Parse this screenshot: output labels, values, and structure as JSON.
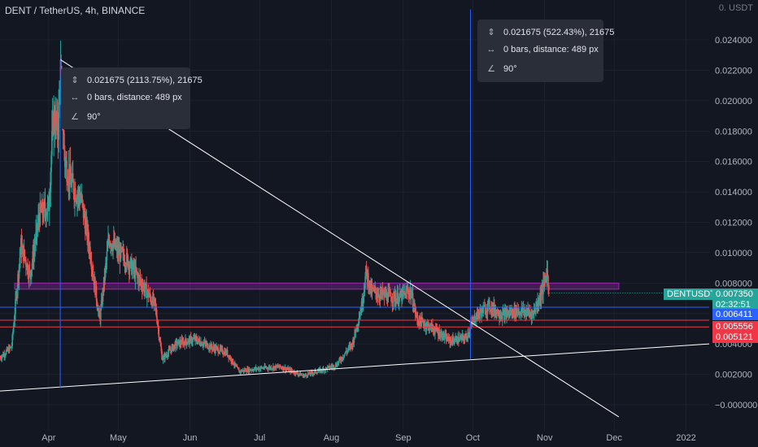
{
  "title": "DENT / TetherUS, 4h, BINANCE",
  "currency_label": "0. USDT",
  "chart_data": {
    "type": "candlestick",
    "symbol": "DENTUSDT",
    "ylim": [
      -0.001,
      0.025
    ],
    "y_ticks": [
      "0.024000",
      "0.022000",
      "0.020000",
      "0.018000",
      "0.016000",
      "0.014000",
      "0.012000",
      "0.010000",
      "0.008000",
      "0.006000",
      "0.004000",
      "0.002000",
      "−0.000000"
    ],
    "y_tick_values": [
      0.024,
      0.022,
      0.02,
      0.018,
      0.016,
      0.014,
      0.012,
      0.01,
      0.008,
      0.006,
      0.004,
      0.002,
      0.0
    ],
    "x_ticks": [
      "Apr",
      "May",
      "Jun",
      "Jul",
      "Aug",
      "Sep",
      "Oct",
      "Nov",
      "Dec",
      "2022"
    ],
    "x_tick_dates": [
      "2021-04-01",
      "2021-05-01",
      "2021-06-01",
      "2021-07-01",
      "2021-08-01",
      "2021-09-01",
      "2021-10-01",
      "2021-11-01",
      "2021-12-01",
      "2022-01-01"
    ],
    "x_range": [
      "2021-03-11",
      "2022-01-11"
    ],
    "price_path": [
      [
        "2021-03-11",
        0.0031
      ],
      [
        "2021-03-16",
        0.0038
      ],
      [
        "2021-03-20",
        0.0105
      ],
      [
        "2021-03-24",
        0.0085
      ],
      [
        "2021-03-28",
        0.0125
      ],
      [
        "2021-04-01",
        0.013
      ],
      [
        "2021-04-03",
        0.019
      ],
      [
        "2021-04-05",
        0.018
      ],
      [
        "2021-04-06",
        0.022
      ],
      [
        "2021-04-08",
        0.016
      ],
      [
        "2021-04-11",
        0.0145
      ],
      [
        "2021-04-15",
        0.0135
      ],
      [
        "2021-04-19",
        0.01
      ],
      [
        "2021-04-23",
        0.0055
      ],
      [
        "2021-04-27",
        0.011
      ],
      [
        "2021-05-01",
        0.01
      ],
      [
        "2021-05-05",
        0.0095
      ],
      [
        "2021-05-09",
        0.0085
      ],
      [
        "2021-05-13",
        0.0075
      ],
      [
        "2021-05-17",
        0.0065
      ],
      [
        "2021-05-20",
        0.003
      ],
      [
        "2021-05-26",
        0.004
      ],
      [
        "2021-06-03",
        0.0043
      ],
      [
        "2021-06-10",
        0.0038
      ],
      [
        "2021-06-17",
        0.0034
      ],
      [
        "2021-06-22",
        0.0022
      ],
      [
        "2021-07-01",
        0.0024
      ],
      [
        "2021-07-10",
        0.0025
      ],
      [
        "2021-07-20",
        0.0019
      ],
      [
        "2021-07-26",
        0.0022
      ],
      [
        "2021-08-03",
        0.0026
      ],
      [
        "2021-08-10",
        0.004
      ],
      [
        "2021-08-14",
        0.0065
      ],
      [
        "2021-08-16",
        0.0088
      ],
      [
        "2021-08-18",
        0.0075
      ],
      [
        "2021-08-23",
        0.0072
      ],
      [
        "2021-08-30",
        0.007
      ],
      [
        "2021-09-04",
        0.0075
      ],
      [
        "2021-09-07",
        0.0056
      ],
      [
        "2021-09-14",
        0.005
      ],
      [
        "2021-09-21",
        0.0042
      ],
      [
        "2021-09-28",
        0.0044
      ],
      [
        "2021-10-02",
        0.0058
      ],
      [
        "2021-10-08",
        0.0065
      ],
      [
        "2021-10-14",
        0.0059
      ],
      [
        "2021-10-20",
        0.0062
      ],
      [
        "2021-10-27",
        0.006
      ],
      [
        "2021-10-31",
        0.0075
      ],
      [
        "2021-11-02",
        0.0088
      ],
      [
        "2021-11-03",
        0.00735
      ]
    ],
    "last_price": {
      "label": "DENTUSDT",
      "value": "0.007350",
      "countdown": "02:32:51"
    },
    "price_levels": [
      {
        "value": "0.006411",
        "price": 0.006411,
        "color": "#2962ff"
      },
      {
        "value": "0.005556",
        "price": 0.005556,
        "color": "#f23645"
      },
      {
        "value": "0.005121",
        "price": 0.005121,
        "color": "#f23645"
      }
    ],
    "zone": {
      "from": 0.0076,
      "to": 0.008,
      "start": "2021-03-11",
      "end": "2021-12-03",
      "color": "#9c27b0"
    },
    "trendlines": [
      {
        "from": [
          "2021-04-06",
          0.0227
        ],
        "to": [
          "2021-12-03",
          -0.0008
        ],
        "color": "#ffffff"
      },
      {
        "from": [
          "2021-03-11",
          0.0009
        ],
        "to": [
          "2022-01-11",
          0.004
        ],
        "color": "#ffffff"
      }
    ],
    "vlines": [
      {
        "date": "2021-04-06",
        "from": 0.0011,
        "to": 0.0227,
        "color": "#2962ff"
      },
      {
        "date": "2021-09-30",
        "from": 0.003,
        "to": 0.026,
        "color": "#2962ff"
      }
    ],
    "measurements": [
      {
        "line1": "0.021675 (2113.75%), 21675",
        "line2": "0 bars, distance: 489 px",
        "line3": "90°"
      },
      {
        "line1": "0.021675 (522.43%), 21675",
        "line2": "0 bars, distance: 489 px",
        "line3": "90°"
      }
    ]
  }
}
